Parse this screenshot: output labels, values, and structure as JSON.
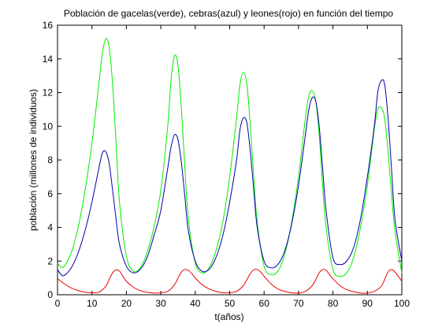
{
  "chart_data": {
    "type": "line",
    "title": "Población de gacelas(verde), cebras(azul) y leones(rojo) en función del tiempo",
    "xlabel": "t(años)",
    "ylabel": "población (millones de individuos)",
    "xlim": [
      0,
      100
    ],
    "ylim": [
      0,
      16
    ],
    "xticks": [
      "0",
      "10",
      "20",
      "30",
      "40",
      "50",
      "60",
      "70",
      "80",
      "90",
      "100"
    ],
    "yticks": [
      "0",
      "2",
      "4",
      "6",
      "8",
      "10",
      "12",
      "14",
      "16"
    ],
    "grid": false,
    "legend": "none",
    "series": [
      {
        "color": "#00ee00",
        "x": [
          0,
          1,
          2,
          4,
          6,
          8,
          10,
          12,
          13,
          14,
          15,
          16,
          17,
          18,
          20,
          22,
          24,
          26,
          28,
          30,
          32,
          33,
          34,
          35,
          36,
          37,
          38,
          40,
          42,
          44,
          46,
          48,
          50,
          52,
          53,
          54,
          55,
          56,
          57,
          58,
          60,
          62,
          64,
          66,
          68,
          70,
          72,
          73,
          74,
          75,
          76,
          77,
          78,
          80,
          82,
          84,
          86,
          88,
          90,
          92,
          93,
          94,
          95,
          96,
          97,
          98,
          100
        ],
        "values": [
          1.9,
          1.65,
          1.7,
          2.5,
          4.0,
          6.2,
          9.0,
          12.5,
          14.3,
          15.2,
          14.7,
          12.5,
          9.0,
          5.5,
          2.3,
          1.4,
          1.6,
          2.5,
          4.0,
          6.2,
          10.0,
          12.8,
          14.2,
          13.6,
          11.0,
          7.5,
          4.5,
          1.9,
          1.3,
          1.6,
          2.6,
          4.3,
          7.0,
          10.5,
          12.5,
          13.2,
          12.5,
          10.0,
          7.0,
          4.3,
          1.7,
          1.2,
          1.4,
          2.4,
          4.3,
          7.0,
          10.5,
          11.8,
          12.1,
          11.5,
          9.5,
          6.5,
          4.0,
          1.5,
          1.1,
          1.3,
          2.2,
          4.0,
          6.5,
          9.8,
          11.0,
          11.1,
          10.5,
          8.5,
          6.0,
          3.8,
          1.3
        ]
      },
      {
        "color": "#0000aa",
        "x": [
          0,
          1,
          2,
          4,
          6,
          8,
          10,
          12,
          13,
          14,
          15,
          16,
          17,
          18,
          20,
          22,
          24,
          26,
          28,
          30,
          32,
          33,
          34,
          35,
          36,
          37,
          38,
          40,
          42,
          44,
          46,
          48,
          50,
          52,
          53,
          54,
          55,
          56,
          57,
          58,
          60,
          62,
          64,
          66,
          68,
          70,
          72,
          73,
          74,
          75,
          76,
          77,
          78,
          80,
          82,
          84,
          86,
          88,
          90,
          92,
          93,
          94,
          95,
          96,
          97,
          98,
          100
        ],
        "values": [
          1.5,
          1.2,
          1.15,
          1.6,
          2.5,
          3.8,
          5.5,
          7.5,
          8.4,
          8.5,
          7.8,
          6.2,
          4.5,
          3.0,
          1.7,
          1.3,
          1.5,
          2.2,
          3.5,
          5.0,
          7.5,
          8.8,
          9.5,
          9.2,
          7.8,
          5.8,
          3.8,
          2.0,
          1.4,
          1.5,
          2.2,
          3.5,
          5.5,
          8.0,
          9.8,
          10.5,
          10.2,
          8.5,
          6.2,
          4.0,
          2.0,
          1.6,
          1.8,
          2.6,
          4.2,
          6.5,
          9.5,
          11.0,
          11.7,
          11.5,
          10.0,
          7.5,
          5.0,
          2.2,
          1.8,
          2.0,
          2.8,
          4.5,
          7.0,
          10.0,
          12.0,
          12.7,
          12.5,
          10.5,
          7.5,
          4.5,
          2.0
        ]
      },
      {
        "color": "#ee0000",
        "x": [
          0,
          2,
          4,
          6,
          8,
          10,
          12,
          14,
          15,
          16,
          17,
          18,
          19,
          20,
          22,
          24,
          26,
          28,
          30,
          32,
          34,
          35,
          36,
          37,
          38,
          39,
          40,
          42,
          44,
          46,
          48,
          50,
          52,
          54,
          55,
          56,
          57,
          58,
          59,
          60,
          62,
          64,
          66,
          68,
          70,
          72,
          74,
          75,
          76,
          77,
          78,
          79,
          80,
          82,
          84,
          86,
          88,
          90,
          92,
          94,
          95,
          96,
          97,
          98,
          100
        ],
        "values": [
          0.95,
          0.65,
          0.4,
          0.25,
          0.15,
          0.12,
          0.15,
          0.5,
          0.9,
          1.3,
          1.48,
          1.4,
          1.1,
          0.8,
          0.45,
          0.25,
          0.15,
          0.1,
          0.12,
          0.2,
          0.6,
          1.0,
          1.35,
          1.5,
          1.45,
          1.25,
          1.0,
          0.6,
          0.35,
          0.2,
          0.12,
          0.12,
          0.2,
          0.55,
          0.9,
          1.25,
          1.48,
          1.5,
          1.35,
          1.1,
          0.65,
          0.35,
          0.2,
          0.12,
          0.1,
          0.2,
          0.55,
          0.9,
          1.3,
          1.5,
          1.45,
          1.2,
          0.95,
          0.55,
          0.3,
          0.18,
          0.1,
          0.1,
          0.2,
          0.5,
          0.9,
          1.35,
          1.5,
          1.35,
          0.8
        ]
      }
    ]
  }
}
